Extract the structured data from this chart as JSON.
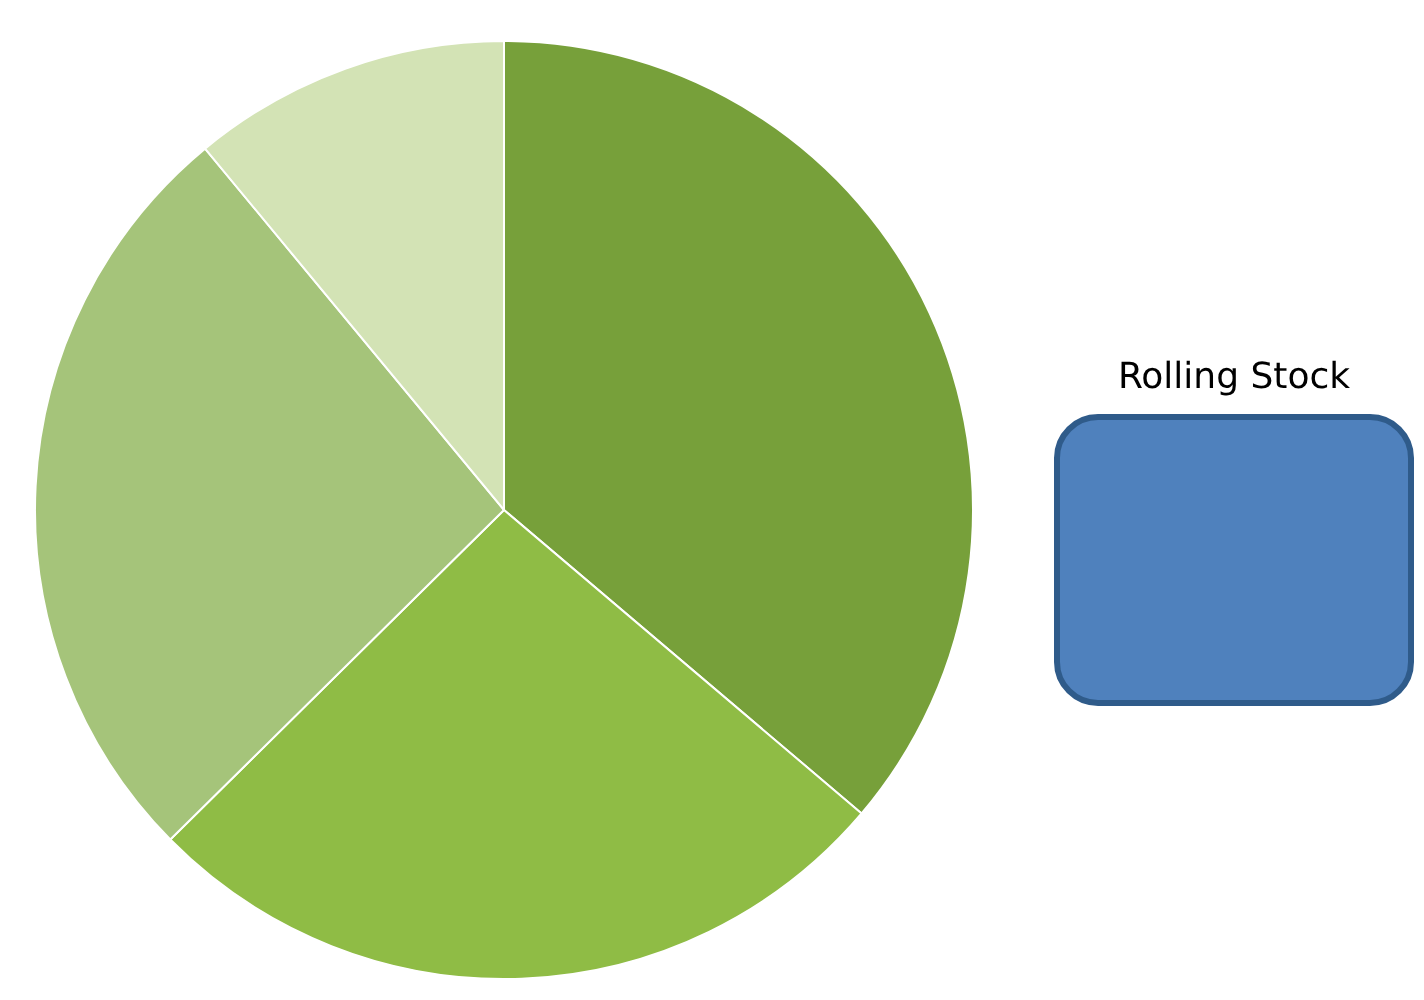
{
  "chart_data": {
    "type": "pie",
    "categories": [
      null,
      null,
      null,
      null
    ],
    "values": [
      36.2,
      26.4,
      26.4,
      11.0
    ],
    "colors": [
      "#77a03a",
      "#8fbc45",
      "#a5c47a",
      "#d3e3b5"
    ],
    "annotations": [
      "Rolling Stock"
    ]
  }
}
